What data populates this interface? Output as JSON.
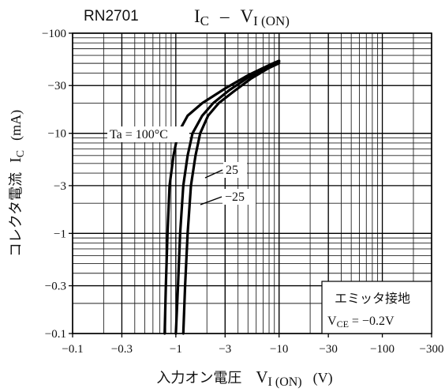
{
  "chart_data": {
    "type": "line",
    "part_number": "RN2701",
    "title": {
      "main": "I",
      "main_sub": "C",
      "dash": "–",
      "second": "V",
      "second_sub": "I (ON)"
    },
    "xlabel": {
      "jp": "入力オン電圧",
      "sym": "V",
      "sub": "I (ON)",
      "unit": "(V)"
    },
    "ylabel": {
      "jp": "コレクタ電流",
      "sym": "I",
      "sub": "C",
      "unit": "(mA)"
    },
    "x_scale": "log",
    "y_scale": "log",
    "xlim": [
      -0.1,
      -300
    ],
    "ylim": [
      -0.1,
      -100
    ],
    "x_ticks": [
      {
        "value": -0.1,
        "label": "−0.1"
      },
      {
        "value": -0.3,
        "label": "−0.3"
      },
      {
        "value": -1,
        "label": "−1"
      },
      {
        "value": -3,
        "label": "−3"
      },
      {
        "value": -10,
        "label": "−10"
      },
      {
        "value": -30,
        "label": "−30"
      },
      {
        "value": -100,
        "label": "−100"
      },
      {
        "value": -300,
        "label": "−300"
      }
    ],
    "y_ticks": [
      {
        "value": -100,
        "label": "−100"
      },
      {
        "value": -30,
        "label": "−30"
      },
      {
        "value": -10,
        "label": "−10"
      },
      {
        "value": -3,
        "label": "−3"
      },
      {
        "value": -1,
        "label": "−1"
      },
      {
        "value": -0.3,
        "label": "−0.3"
      },
      {
        "value": -0.1,
        "label": "−0.1"
      }
    ],
    "grid": true,
    "series": [
      {
        "name": "Ta = 100°C",
        "label": "Ta = 100°C",
        "points": [
          [
            -0.78,
            -0.1
          ],
          [
            -0.8,
            -0.3
          ],
          [
            -0.83,
            -1
          ],
          [
            -0.87,
            -3
          ],
          [
            -0.95,
            -6
          ],
          [
            -1.05,
            -10
          ],
          [
            -1.3,
            -15
          ],
          [
            -1.8,
            -20
          ],
          [
            -3,
            -28
          ],
          [
            -5,
            -38
          ],
          [
            -8,
            -48
          ],
          [
            -10,
            -53
          ]
        ]
      },
      {
        "name": "25",
        "label": "25",
        "points": [
          [
            -1.0,
            -0.1
          ],
          [
            -1.05,
            -0.3
          ],
          [
            -1.1,
            -1
          ],
          [
            -1.18,
            -3
          ],
          [
            -1.3,
            -6
          ],
          [
            -1.45,
            -10
          ],
          [
            -1.8,
            -15
          ],
          [
            -2.3,
            -20
          ],
          [
            -3.3,
            -27
          ],
          [
            -5,
            -36
          ],
          [
            -8,
            -47
          ],
          [
            -10,
            -52
          ]
        ]
      },
      {
        "name": "−25",
        "label": "−25",
        "points": [
          [
            -1.18,
            -0.1
          ],
          [
            -1.23,
            -0.3
          ],
          [
            -1.3,
            -1
          ],
          [
            -1.4,
            -3
          ],
          [
            -1.55,
            -6
          ],
          [
            -1.72,
            -10
          ],
          [
            -2.05,
            -15
          ],
          [
            -2.6,
            -20
          ],
          [
            -3.6,
            -26
          ],
          [
            -5.3,
            -35
          ],
          [
            -8,
            -45
          ],
          [
            -10,
            -50
          ]
        ]
      }
    ],
    "annotation": {
      "line1": "エミッタ接地",
      "line2_sym": "V",
      "line2_sub": "CE",
      "line2_val": " = −0.2V"
    }
  }
}
